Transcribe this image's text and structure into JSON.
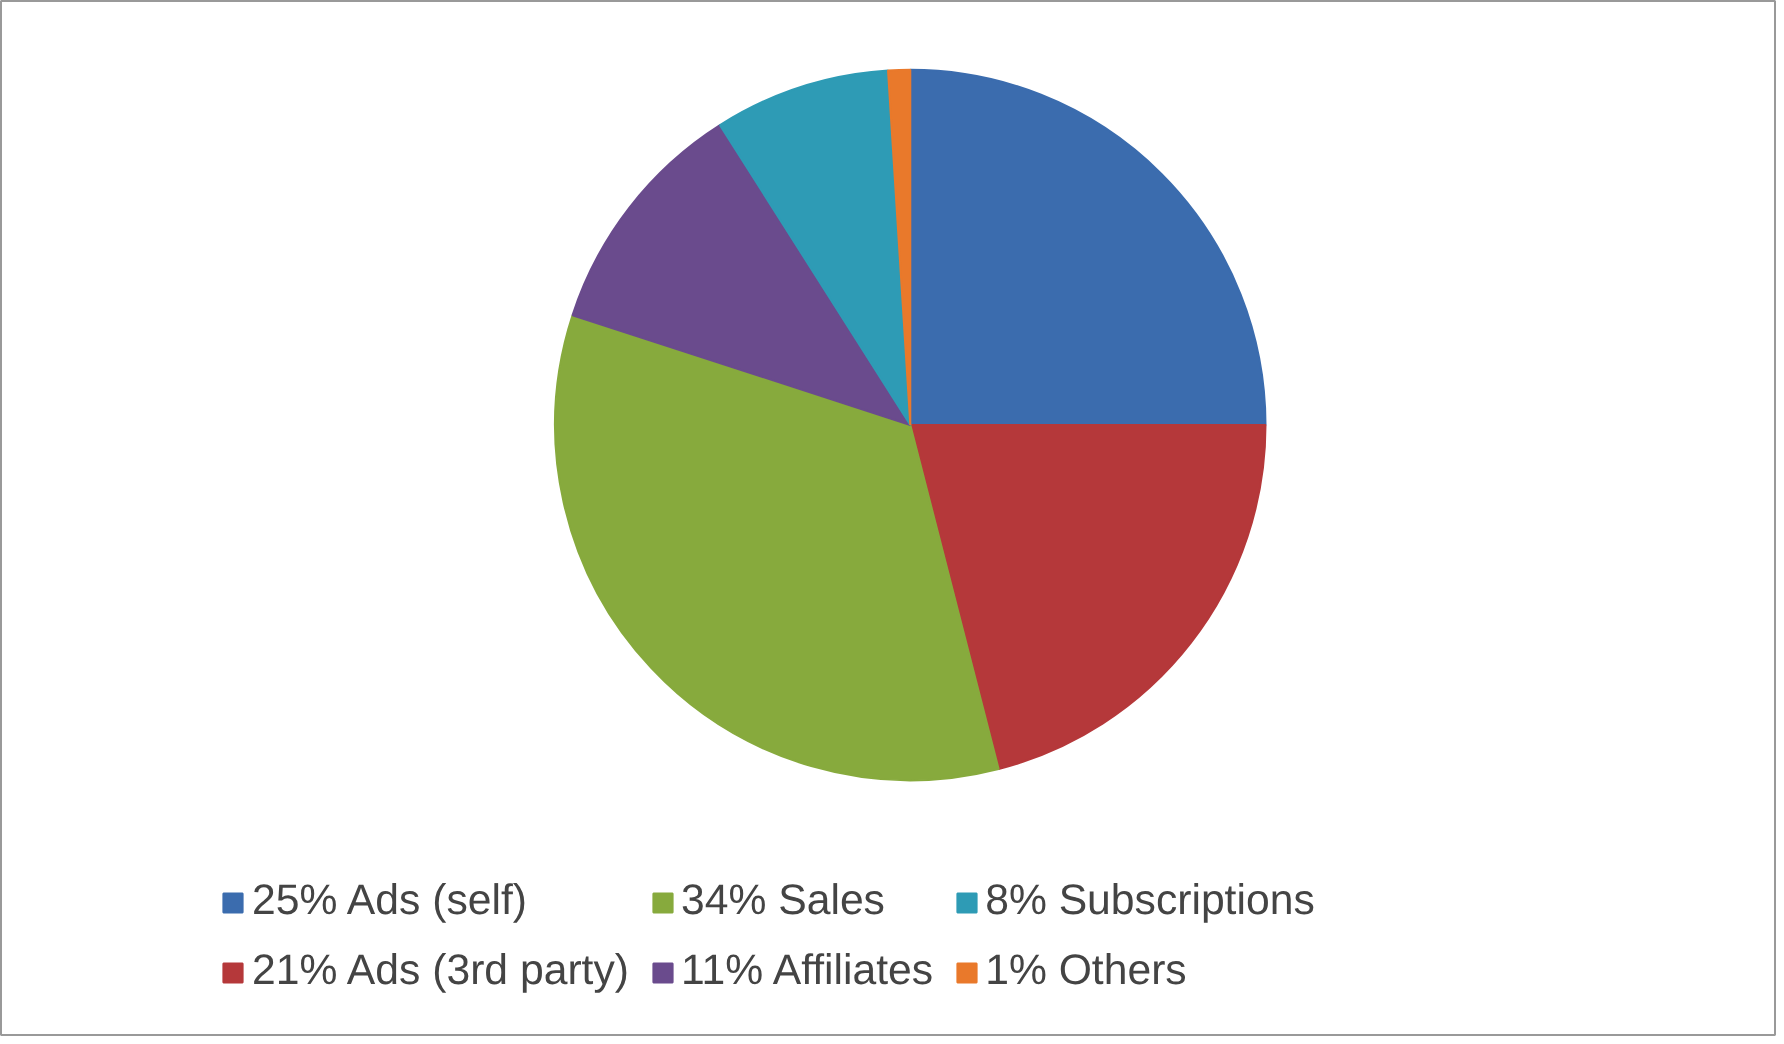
{
  "chart_data": {
    "type": "pie",
    "categories": [
      "25% Ads (self)",
      "21% Ads (3rd party)",
      "34% Sales",
      "11% Affiliates",
      "8% Subscriptions",
      "1% Others"
    ],
    "values": [
      25,
      21,
      34,
      11,
      8,
      1
    ],
    "colors": [
      "#3b6cae",
      "#b5383a",
      "#87aa3d",
      "#6a4b8d",
      "#2e9bb5",
      "#e9792b"
    ],
    "legend": "bottom"
  }
}
